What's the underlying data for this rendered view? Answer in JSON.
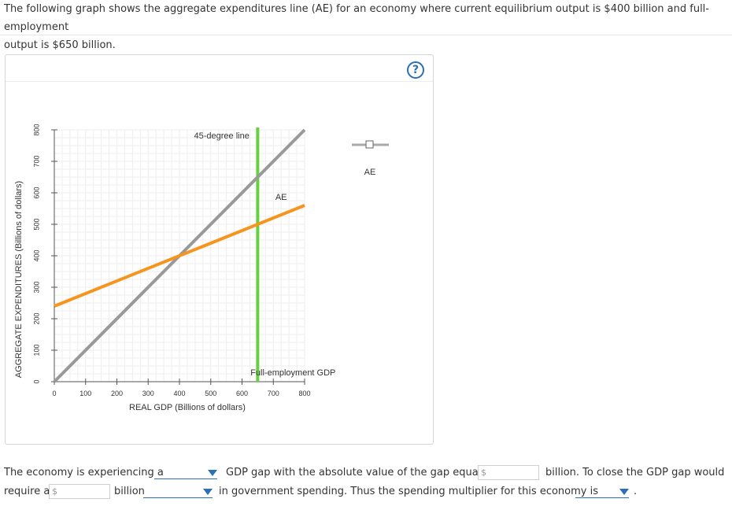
{
  "intro": {
    "line1": "The following graph shows the aggregate expenditures line (AE) for an economy where current equilibrium output is $400 billion and full-employment",
    "line2": "output is $650 billion."
  },
  "help_label": "?",
  "chart_data": {
    "type": "line",
    "xlabel": "REAL GDP (Billions of dollars)",
    "ylabel": "AGGREGATE EXPENDITURES (Billions of dollars)",
    "xlim": [
      0,
      800
    ],
    "ylim": [
      0,
      800
    ],
    "x_ticks": [
      0,
      100,
      200,
      300,
      400,
      500,
      600,
      700,
      800
    ],
    "y_ticks": [
      0,
      100,
      200,
      300,
      400,
      500,
      600,
      700,
      800
    ],
    "grid": true,
    "series": [
      {
        "name": "45-degree line",
        "color": "#999999",
        "x": [
          0,
          800
        ],
        "y": [
          0,
          800
        ]
      },
      {
        "name": "AE",
        "color": "#f7941d",
        "x": [
          0,
          800
        ],
        "y": [
          240,
          560
        ]
      },
      {
        "name": "Full-employment GDP",
        "color": "#66d13f",
        "x": [
          650,
          650
        ],
        "y": [
          0,
          800
        ]
      }
    ],
    "legend": {
      "label": "AE",
      "placement": "right"
    }
  },
  "question": {
    "part1": "The economy is experiencing a",
    "part2": "GDP gap with the absolute value of the gap equal to",
    "dollar1": "$",
    "part3": "billion. To close the GDP gap would",
    "part4": "require a",
    "dollar2": "$",
    "part5": "billion",
    "part6": "in government spending. Thus the spending multiplier for this economy is",
    "part7": "."
  }
}
